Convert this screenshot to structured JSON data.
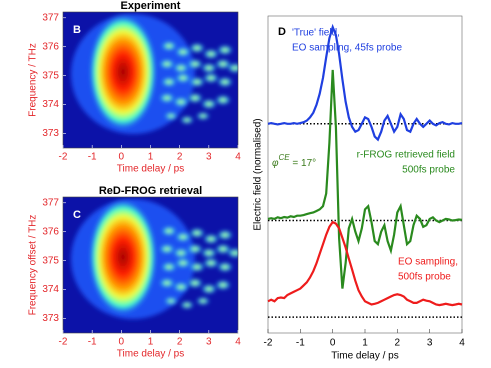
{
  "chart_data": [
    {
      "type": "heatmap",
      "panel": "B",
      "title": "Experiment",
      "xlabel": "Time delay / ps",
      "ylabel": "Frequency / THz",
      "xlim": [
        -2,
        4
      ],
      "ylim": [
        372.5,
        377.2
      ],
      "xticks": [
        -2,
        -1,
        0,
        1,
        2,
        3,
        4
      ],
      "yticks": [
        373,
        374,
        375,
        376,
        377
      ],
      "color": "#e3262a"
    },
    {
      "type": "heatmap",
      "panel": "C",
      "title": "ReD-FROG retrieval",
      "xlabel": "Time delay / ps",
      "ylabel": "Frequency offset / THz",
      "xlim": [
        -2,
        4
      ],
      "ylim": [
        372.5,
        377.2
      ],
      "xticks": [
        -2,
        -1,
        0,
        1,
        2,
        3,
        4
      ],
      "yticks": [
        373,
        374,
        375,
        376,
        377
      ],
      "color": "#e3262a"
    },
    {
      "type": "line",
      "panel": "D",
      "xlabel": "Time delay / ps",
      "ylabel": "Electric field (normalised)",
      "xlim": [
        -2,
        4
      ],
      "ylim": [
        0,
        10
      ],
      "xticks": [
        -2,
        -1,
        0,
        1,
        2,
        3,
        4
      ],
      "x": [
        -2,
        -1.9,
        -1.8,
        -1.7,
        -1.6,
        -1.5,
        -1.4,
        -1.3,
        -1.2,
        -1.1,
        -1,
        -0.9,
        -0.8,
        -0.7,
        -0.6,
        -0.5,
        -0.4,
        -0.3,
        -0.2,
        -0.1,
        0,
        0.1,
        0.2,
        0.3,
        0.4,
        0.5,
        0.6,
        0.7,
        0.8,
        0.9,
        1,
        1.1,
        1.2,
        1.3,
        1.4,
        1.5,
        1.6,
        1.7,
        1.8,
        1.9,
        2,
        2.1,
        2.2,
        2.3,
        2.4,
        2.5,
        2.6,
        2.7,
        2.8,
        2.9,
        3,
        3.1,
        3.2,
        3.3,
        3.4,
        3.5,
        3.6,
        3.7,
        3.8,
        3.9,
        4
      ],
      "annotation": {
        "symbol": "φ",
        "superscript": "CE",
        "text": " = 17°",
        "color": "#3a7a1a"
      },
      "series": [
        {
          "label": [
            "'True' field,",
            "EO sampling, 45fs probe"
          ],
          "color": "#1f3fe0",
          "baseline": 6.6,
          "values": [
            6.6,
            6.62,
            6.6,
            6.58,
            6.6,
            6.62,
            6.6,
            6.6,
            6.62,
            6.6,
            6.62,
            6.65,
            6.7,
            6.8,
            6.95,
            7.2,
            7.55,
            8.05,
            8.7,
            9.3,
            9.65,
            9.4,
            8.8,
            8.0,
            7.3,
            6.8,
            6.5,
            6.35,
            6.4,
            6.6,
            6.8,
            6.75,
            6.5,
            6.2,
            6.1,
            6.35,
            6.7,
            6.85,
            6.6,
            6.35,
            6.5,
            6.9,
            6.75,
            6.4,
            6.35,
            6.6,
            6.75,
            6.6,
            6.5,
            6.6,
            6.7,
            6.6,
            6.55,
            6.62,
            6.65,
            6.6,
            6.58,
            6.62,
            6.6,
            6.6,
            6.62
          ]
        },
        {
          "label": [
            "r-FROG retrieved field",
            "500fs probe"
          ],
          "color": "#2a8a1e",
          "baseline": 3.55,
          "values": [
            3.6,
            3.62,
            3.6,
            3.65,
            3.62,
            3.66,
            3.64,
            3.68,
            3.66,
            3.7,
            3.7,
            3.72,
            3.75,
            3.78,
            3.8,
            3.85,
            3.9,
            4.0,
            4.4,
            6.0,
            8.3,
            6.5,
            3.0,
            1.4,
            2.2,
            3.3,
            3.6,
            3.2,
            2.9,
            3.3,
            3.9,
            4.0,
            3.5,
            2.9,
            2.8,
            3.2,
            3.4,
            2.9,
            2.6,
            3.1,
            3.8,
            4.0,
            3.4,
            2.8,
            2.9,
            3.4,
            3.7,
            3.6,
            3.35,
            3.4,
            3.6,
            3.65,
            3.55,
            3.5,
            3.55,
            3.6,
            3.58,
            3.55,
            3.56,
            3.58,
            3.57
          ]
        },
        {
          "label": [
            "EO sampling,",
            "500fs probe"
          ],
          "color": "#ee1c1c",
          "baseline": 0.5,
          "values": [
            1.0,
            1.05,
            1.0,
            1.1,
            1.12,
            1.1,
            1.2,
            1.25,
            1.3,
            1.35,
            1.4,
            1.5,
            1.6,
            1.75,
            1.95,
            2.2,
            2.5,
            2.8,
            3.1,
            3.35,
            3.5,
            3.45,
            3.3,
            3.0,
            2.7,
            2.35,
            2.0,
            1.65,
            1.35,
            1.15,
            1.0,
            0.95,
            0.9,
            0.92,
            0.95,
            1.0,
            1.05,
            1.1,
            1.15,
            1.2,
            1.22,
            1.2,
            1.15,
            1.05,
            1.0,
            0.95,
            0.95,
            1.0,
            1.05,
            1.02,
            1.0,
            0.95,
            0.9,
            0.88,
            0.9,
            0.92,
            0.9,
            0.88,
            0.9,
            0.92,
            0.9
          ]
        }
      ]
    }
  ]
}
